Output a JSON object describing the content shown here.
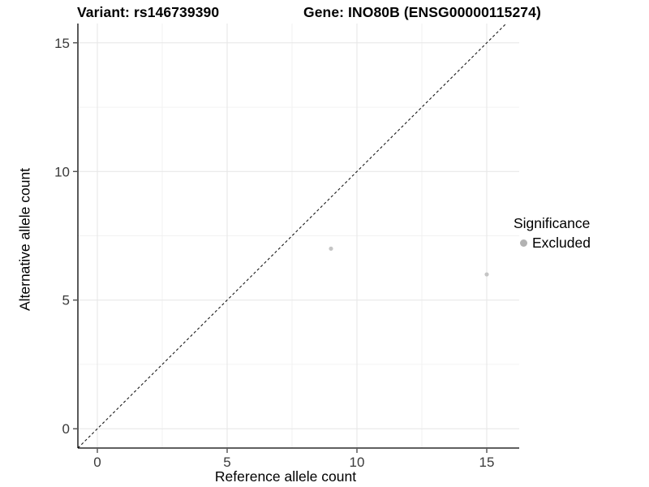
{
  "chart_data": {
    "type": "scatter",
    "title_variant": "Variant: rs146739390",
    "title_gene": "Gene: INO80B (ENSG00000115274)",
    "xlabel": "Reference allele count",
    "ylabel": "Alternative allele count",
    "x_ticks": [
      0,
      5,
      10,
      15
    ],
    "y_ticks": [
      0,
      5,
      10,
      15
    ],
    "x_minor": [
      2.5,
      7.5,
      12.5
    ],
    "y_minor": [
      2.5,
      7.5,
      12.5
    ],
    "xlim": [
      -0.75,
      16.25
    ],
    "ylim": [
      -0.75,
      15.75
    ],
    "points": [
      {
        "x": 9,
        "y": 7,
        "significance": "Excluded"
      },
      {
        "x": 15,
        "y": 6,
        "significance": "Excluded"
      }
    ],
    "identity_line": {
      "slope": 1,
      "intercept": 0,
      "style": "dashed",
      "color": "#1a1a1a"
    },
    "grid": "on",
    "colors": {
      "point": "#c5c5c5",
      "grid_major": "#e6e6e6",
      "grid_minor": "#f1f1f1",
      "axis_line": "#000000",
      "tick": "#333333",
      "tick_label": "#3a3a3a"
    },
    "legend": {
      "position": "right",
      "title": "Significance",
      "items": [
        {
          "label": "Excluded",
          "color": "#b2b2b2"
        }
      ]
    }
  }
}
